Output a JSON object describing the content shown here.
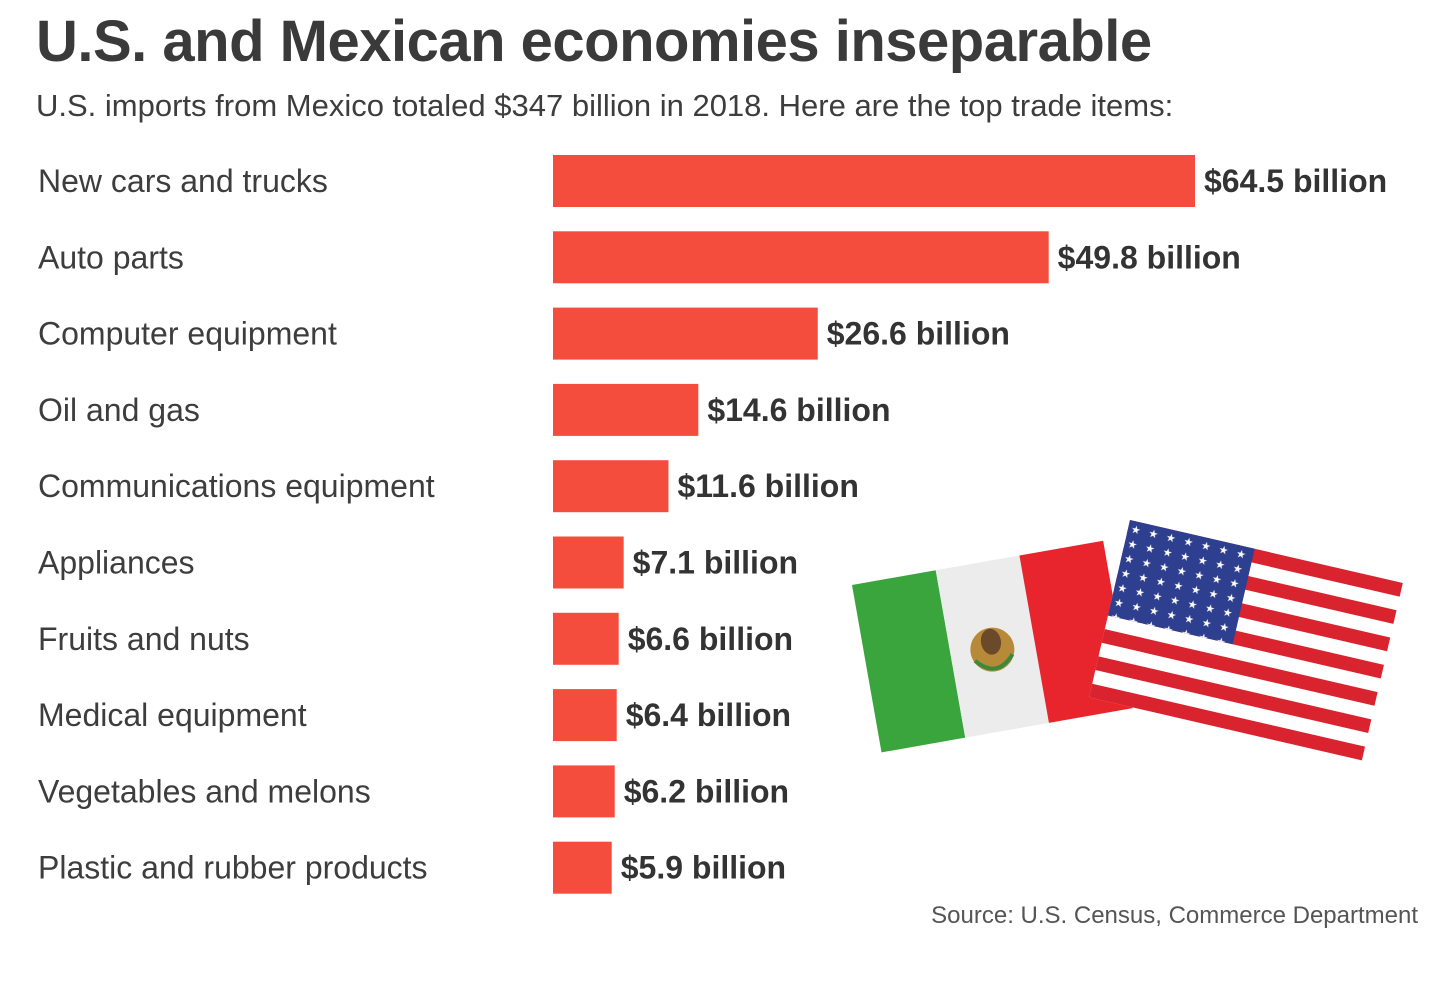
{
  "title": "U.S. and Mexican economies inseparable",
  "subtitle": "U.S. imports from Mexico totaled $347 billion in 2018. Here are the top trade items:",
  "source": "Source: U.S. Census, Commerce Department",
  "colors": {
    "bar": "#f54d3d",
    "text": "#3d3d3d"
  },
  "icons": [
    "mexico-flag-icon",
    "us-flag-icon"
  ],
  "chart_data": {
    "type": "bar",
    "orientation": "horizontal",
    "title": "U.S. and Mexican economies inseparable",
    "subtitle": "U.S. imports from Mexico totaled $347 billion in 2018. Here are the top trade items:",
    "unit": "billion USD",
    "categories": [
      "New cars and trucks",
      "Auto parts",
      "Computer equipment",
      "Oil and gas",
      "Communications equipment",
      "Appliances",
      "Fruits and nuts",
      "Medical equipment",
      "Vegetables and melons",
      "Plastic and rubber products"
    ],
    "values": [
      64.5,
      49.8,
      26.6,
      14.6,
      11.6,
      7.1,
      6.6,
      6.4,
      6.2,
      5.9
    ],
    "value_labels": [
      "$64.5 billion",
      "$49.8 billion",
      "$26.6 billion",
      "$14.6 billion",
      "$11.6 billion",
      "$7.1 billion",
      "$6.6 billion",
      "$6.4 billion",
      "$6.2 billion",
      "$5.9 billion"
    ],
    "grid": false,
    "legend": "none"
  }
}
